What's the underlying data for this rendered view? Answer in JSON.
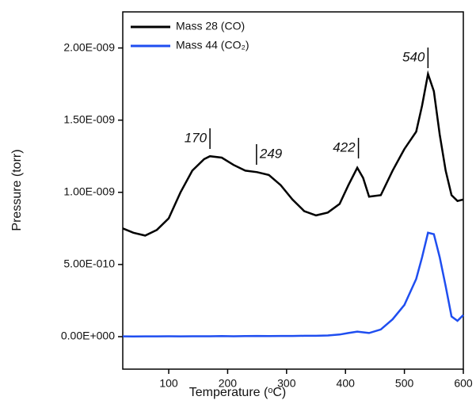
{
  "chart_data": {
    "type": "line",
    "x_label": "Temperature (ᵒC)",
    "y_label": "Pressure (torr)",
    "xlim": [
      22,
      600
    ],
    "xticks": [
      100,
      200,
      300,
      400,
      500,
      600
    ],
    "ylim": [
      -2.25e-10,
      2.25e-09
    ],
    "yticks": [
      {
        "value": 0,
        "label": "0.00E+000"
      },
      {
        "value": 5e-10,
        "label": "5.00E-010"
      },
      {
        "value": 1e-09,
        "label": "1.00E-009"
      },
      {
        "value": 1.5e-09,
        "label": "1.50E-009"
      },
      {
        "value": 2e-09,
        "label": "2.00E-009"
      }
    ],
    "legend": "upper-left",
    "annotations": [
      170,
      249,
      422,
      540
    ],
    "x": [
      22,
      40,
      60,
      80,
      100,
      120,
      140,
      160,
      170,
      190,
      210,
      230,
      250,
      270,
      290,
      310,
      330,
      350,
      370,
      390,
      405,
      420,
      430,
      440,
      460,
      480,
      500,
      520,
      530,
      540,
      550,
      560,
      570,
      580,
      590,
      600
    ],
    "series": [
      {
        "name": "Mass 28 (CO)",
        "color": "#000000",
        "values": [
          7.5e-10,
          7.2e-10,
          7e-10,
          7.4e-10,
          8.2e-10,
          1e-09,
          1.15e-09,
          1.23e-09,
          1.25e-09,
          1.24e-09,
          1.19e-09,
          1.15e-09,
          1.14e-09,
          1.12e-09,
          1.05e-09,
          9.5e-10,
          8.7e-10,
          8.4e-10,
          8.6e-10,
          9.2e-10,
          1.05e-09,
          1.17e-09,
          1.1e-09,
          9.7e-10,
          9.8e-10,
          1.15e-09,
          1.3e-09,
          1.42e-09,
          1.6e-09,
          1.82e-09,
          1.7e-09,
          1.4e-09,
          1.15e-09,
          9.8e-10,
          9.4e-10,
          9.5e-10
        ]
      },
      {
        "name": "Mass 44 (CO₂)",
        "color": "#1f4ef0",
        "values": [
          2e-12,
          1e-12,
          2e-12,
          2e-12,
          3e-12,
          2e-12,
          3e-12,
          3e-12,
          3e-12,
          4e-12,
          3e-12,
          4e-12,
          5e-12,
          4e-12,
          5e-12,
          5e-12,
          6e-12,
          6e-12,
          8e-12,
          1.5e-11,
          2.5e-11,
          3.5e-11,
          3e-11,
          2.5e-11,
          5e-11,
          1.2e-10,
          2.2e-10,
          4e-10,
          5.5e-10,
          7.2e-10,
          7.1e-10,
          5.5e-10,
          3.5e-10,
          1.4e-10,
          1.1e-10,
          1.5e-10
        ]
      }
    ]
  }
}
